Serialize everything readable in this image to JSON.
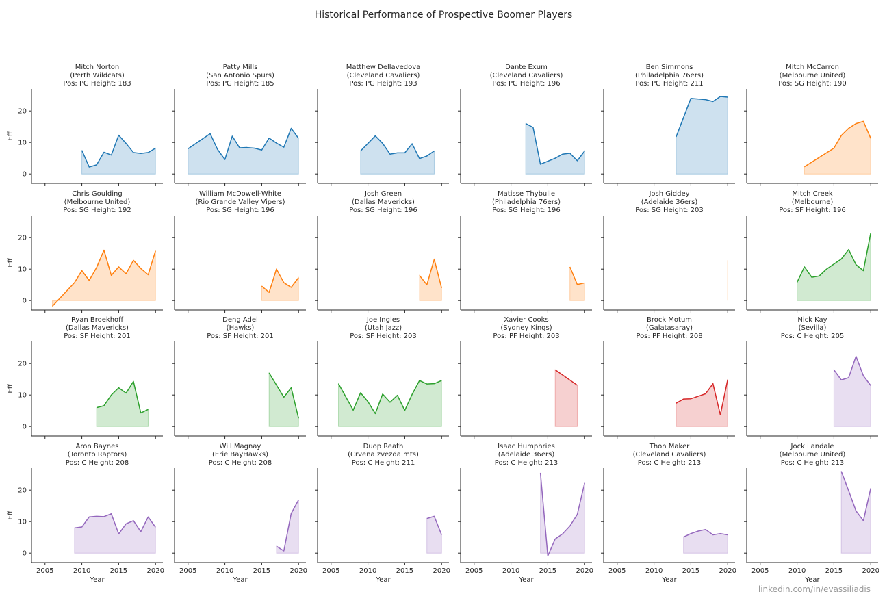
{
  "figure": {
    "title": "Historical Performance of Prospective Boomer Players",
    "credit": "linkedin.com/in/evassiliadis"
  },
  "chart_data": {
    "type": "area",
    "layout": "small-multiples",
    "xlabel": "Year",
    "ylabel": "Eff",
    "xlim": [
      2004,
      2021
    ],
    "ylim": [
      -3,
      27
    ],
    "xticks": [
      2005,
      2010,
      2015,
      2020
    ],
    "yticks": [
      0,
      10,
      20
    ],
    "grid": false,
    "colors": {
      "PG": "#1f77b4",
      "SG": "#ff7f0e",
      "SF": "#2ca02c",
      "PF": "#d62728",
      "C": "#9467bd"
    },
    "panels": [
      {
        "name": "Mitch Norton",
        "team": "(Perth Wildcats)",
        "pos": "PG",
        "info": "Pos: PG  Height: 183",
        "x": [
          2010,
          2011,
          2012,
          2013,
          2014,
          2015,
          2016,
          2017,
          2018,
          2019,
          2020
        ],
        "y": [
          7.5,
          2.2,
          2.9,
          6.9,
          6.0,
          12.3,
          9.7,
          6.8,
          6.5,
          6.8,
          8.2
        ]
      },
      {
        "name": "Patty Mills",
        "team": "(San Antonio Spurs)",
        "pos": "PG",
        "info": "Pos: PG  Height: 185",
        "x": [
          2005,
          2008,
          2009,
          2010,
          2011,
          2012,
          2013,
          2014,
          2015,
          2016,
          2017,
          2018,
          2019,
          2020
        ],
        "y": [
          8.0,
          12.8,
          7.8,
          4.6,
          12.0,
          8.3,
          8.4,
          8.2,
          7.6,
          11.4,
          9.8,
          8.5,
          14.5,
          11.3
        ]
      },
      {
        "name": "Matthew Dellavedova",
        "team": "(Cleveland Cavaliers)",
        "pos": "PG",
        "info": "Pos: PG  Height: 193",
        "x": [
          2009,
          2011,
          2012,
          2013,
          2014,
          2015,
          2016,
          2017,
          2018,
          2019
        ],
        "y": [
          7.3,
          12.1,
          9.7,
          6.3,
          6.7,
          6.7,
          9.6,
          4.9,
          5.7,
          7.3
        ]
      },
      {
        "name": "Dante Exum",
        "team": "(Cleveland Cavaliers)",
        "pos": "PG",
        "info": "Pos: PG  Height: 196",
        "x": [
          2012,
          2013,
          2014,
          2016,
          2017,
          2018,
          2019,
          2020
        ],
        "y": [
          16.0,
          14.8,
          3.1,
          5.0,
          6.3,
          6.6,
          4.2,
          7.3
        ]
      },
      {
        "name": "Ben Simmons",
        "team": "(Philadelphia 76ers)",
        "pos": "PG",
        "info": "Pos: PG  Height: 211",
        "x": [
          2013,
          2015,
          2017,
          2018,
          2019,
          2020
        ],
        "y": [
          11.8,
          24.0,
          23.6,
          23.0,
          24.6,
          24.4
        ]
      },
      {
        "name": "Mitch McCarron",
        "team": "(Melbourne United)",
        "pos": "SG",
        "info": "Pos: SG  Height: 190",
        "x": [
          2011,
          2015,
          2016,
          2017,
          2018,
          2019,
          2020
        ],
        "y": [
          2.3,
          8.2,
          12.2,
          14.5,
          16.0,
          16.7,
          11.3
        ]
      },
      {
        "name": "Chris Goulding",
        "team": "(Melbourne United)",
        "pos": "SG",
        "info": "Pos: SG  Height: 192",
        "x": [
          2006,
          2009,
          2010,
          2011,
          2012,
          2013,
          2014,
          2015,
          2016,
          2017,
          2018,
          2019,
          2020
        ],
        "y": [
          -1.8,
          5.7,
          9.5,
          6.4,
          10.5,
          16.0,
          8.0,
          10.7,
          8.5,
          12.8,
          10.2,
          8.2,
          15.8
        ]
      },
      {
        "name": "William McDowell-White",
        "team": "(Rio Grande Valley Vipers)",
        "pos": "SG",
        "info": "Pos: SG  Height: 196",
        "x": [
          2015,
          2016,
          2017,
          2018,
          2019,
          2020
        ],
        "y": [
          4.6,
          2.6,
          10.0,
          5.7,
          4.2,
          7.3
        ]
      },
      {
        "name": "Josh Green",
        "team": "(Dallas Mavericks)",
        "pos": "SG",
        "info": "Pos: SG  Height: 196",
        "x": [
          2017,
          2018,
          2019,
          2020
        ],
        "y": [
          8.0,
          5.0,
          13.1,
          4.0
        ]
      },
      {
        "name": "Matisse Thybulle",
        "team": "(Philadelphia 76ers)",
        "pos": "SG",
        "info": "Pos: SG  Height: 196",
        "x": [
          2018,
          2019,
          2020
        ],
        "y": [
          10.7,
          5.1,
          5.6
        ]
      },
      {
        "name": "Josh Giddey",
        "team": "(Adelaide 36ers)",
        "pos": "SG",
        "info": "Pos: SG  Height: 203",
        "x": [
          2020
        ],
        "y": [
          12.8
        ]
      },
      {
        "name": "Mitch Creek",
        "team": "(Melbourne)",
        "pos": "SF",
        "info": "Pos: SF  Height: 196",
        "x": [
          2010,
          2011,
          2012,
          2013,
          2014,
          2016,
          2017,
          2018,
          2019,
          2020
        ],
        "y": [
          5.8,
          10.7,
          7.4,
          7.8,
          10.0,
          13.2,
          16.2,
          11.4,
          9.5,
          21.5
        ]
      },
      {
        "name": "Ryan Broekhoff",
        "team": "(Dallas Mavericks)",
        "pos": "SF",
        "info": "Pos: SF  Height: 201",
        "x": [
          2012,
          2013,
          2014,
          2015,
          2016,
          2017,
          2018,
          2019
        ],
        "y": [
          6.0,
          6.6,
          10.0,
          12.3,
          10.6,
          14.3,
          4.3,
          5.4
        ]
      },
      {
        "name": "Deng Adel",
        "team": "(Hawks)",
        "pos": "SF",
        "info": "Pos: SF  Height: 201",
        "x": [
          2016,
          2018,
          2019,
          2020
        ],
        "y": [
          17.0,
          9.3,
          12.3,
          2.6
        ]
      },
      {
        "name": "Joe Ingles",
        "team": "(Utah Jazz)",
        "pos": "SF",
        "info": "Pos: SF  Height: 203",
        "x": [
          2006,
          2008,
          2009,
          2010,
          2011,
          2012,
          2013,
          2014,
          2015,
          2016,
          2017,
          2018,
          2019,
          2020
        ],
        "y": [
          13.6,
          5.2,
          10.7,
          7.9,
          4.1,
          10.3,
          7.7,
          9.9,
          5.1,
          10.2,
          14.6,
          13.5,
          13.6,
          14.6
        ]
      },
      {
        "name": "Xavier Cooks",
        "team": "(Sydney Kings)",
        "pos": "PF",
        "info": "Pos: PF  Height: 203",
        "x": [
          2016,
          2019
        ],
        "y": [
          18.0,
          13.1
        ]
      },
      {
        "name": "Brock Motum",
        "team": "(Galatasaray)",
        "pos": "PF",
        "info": "Pos: PF  Height: 208",
        "x": [
          2013,
          2014,
          2015,
          2016,
          2017,
          2018,
          2019,
          2020
        ],
        "y": [
          7.4,
          8.7,
          8.8,
          9.6,
          10.4,
          13.6,
          3.7,
          14.9
        ]
      },
      {
        "name": "Nick Kay",
        "team": "(Sevilla)",
        "pos": "C",
        "info": "Pos: C  Height: 205",
        "x": [
          2015,
          2016,
          2017,
          2018,
          2019,
          2020
        ],
        "y": [
          18.0,
          14.8,
          15.5,
          22.3,
          16.1,
          13.0
        ]
      },
      {
        "name": "Aron Baynes",
        "team": "(Toronto Raptors)",
        "pos": "C",
        "info": "Pos: C  Height: 208",
        "x": [
          2009,
          2010,
          2011,
          2012,
          2013,
          2014,
          2015,
          2016,
          2017,
          2018,
          2019,
          2020
        ],
        "y": [
          8.0,
          8.3,
          11.5,
          11.7,
          11.6,
          12.5,
          6.1,
          9.3,
          10.3,
          6.8,
          11.5,
          8.2
        ]
      },
      {
        "name": "Will Magnay",
        "team": "(Erie BayHawks)",
        "pos": "C",
        "info": "Pos: C  Height: 208",
        "x": [
          2017,
          2018,
          2019,
          2020
        ],
        "y": [
          2.2,
          0.7,
          12.6,
          16.9
        ]
      },
      {
        "name": "Duop Reath",
        "team": "(Crvena zvezda mts)",
        "pos": "C",
        "info": "Pos: C  Height: 211",
        "x": [
          2018,
          2019,
          2020
        ],
        "y": [
          11.0,
          11.7,
          5.8
        ]
      },
      {
        "name": "Isaac Humphries",
        "team": "(Adelaide 36ers)",
        "pos": "C",
        "info": "Pos: C  Height: 213",
        "x": [
          2014,
          2015,
          2016,
          2017,
          2018,
          2019,
          2020
        ],
        "y": [
          25.5,
          -0.9,
          4.5,
          6.1,
          8.6,
          12.3,
          22.3
        ]
      },
      {
        "name": "Thon Maker",
        "team": "(Cleveland Cavaliers)",
        "pos": "C",
        "info": "Pos: C  Height: 213",
        "x": [
          2014,
          2015,
          2016,
          2017,
          2018,
          2019,
          2020
        ],
        "y": [
          5.1,
          6.2,
          7.0,
          7.5,
          5.8,
          6.2,
          5.8
        ]
      },
      {
        "name": "Jock Landale",
        "team": "(Melbourne United)",
        "pos": "C",
        "info": "Pos: C  Height: 213",
        "x": [
          2016,
          2017,
          2018,
          2019,
          2020
        ],
        "y": [
          26.0,
          19.8,
          13.4,
          10.3,
          20.6
        ]
      }
    ]
  }
}
